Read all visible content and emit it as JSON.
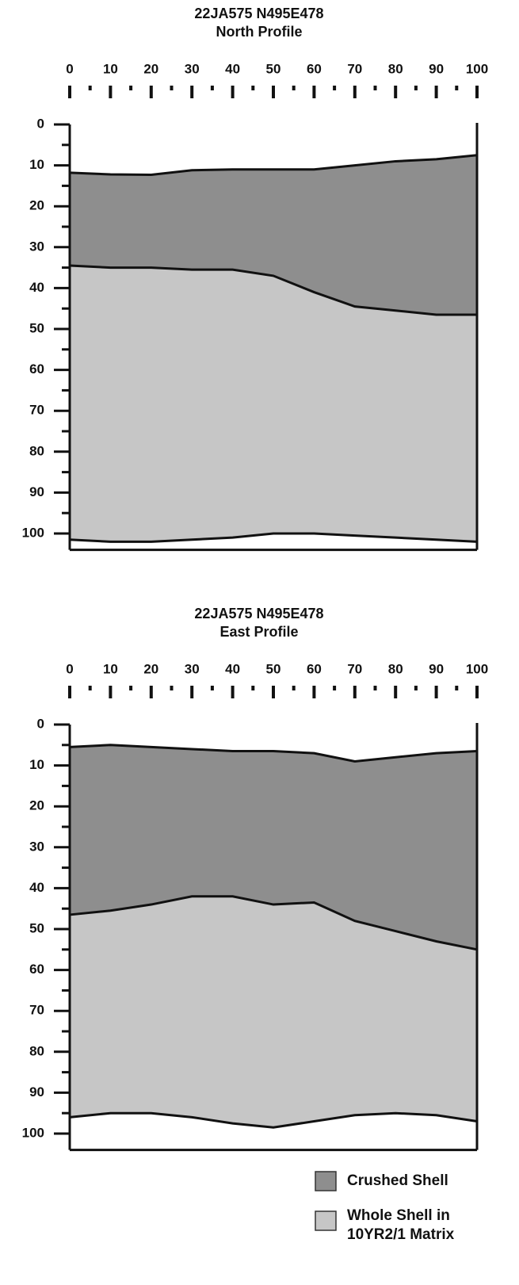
{
  "chart_data": [
    {
      "type": "profile",
      "title": "22JA575 N495E478",
      "subtitle": "North Profile",
      "x": [
        0,
        10,
        20,
        30,
        40,
        50,
        60,
        70,
        80,
        90,
        100
      ],
      "xlim": [
        0,
        100
      ],
      "xticks": [
        0,
        10,
        20,
        30,
        40,
        50,
        60,
        70,
        80,
        90,
        100
      ],
      "ylim": [
        0,
        104
      ],
      "yticks": [
        0,
        10,
        20,
        30,
        40,
        50,
        60,
        70,
        80,
        90,
        100
      ],
      "boundaries": [
        [
          11.8,
          12.2,
          12.3,
          11.2,
          11,
          11,
          11,
          10,
          9,
          8.5,
          7.5
        ],
        [
          34.5,
          35,
          35,
          35.5,
          35.5,
          37,
          41,
          44.5,
          45.5,
          46.5,
          46.5
        ],
        [
          101.5,
          102,
          102,
          101.5,
          101,
          100,
          100,
          100.5,
          101,
          101.5,
          102
        ]
      ]
    },
    {
      "type": "profile",
      "title": "22JA575 N495E478",
      "subtitle": "East Profile",
      "x": [
        0,
        10,
        20,
        30,
        40,
        50,
        60,
        70,
        80,
        90,
        100
      ],
      "xlim": [
        0,
        100
      ],
      "xticks": [
        0,
        10,
        20,
        30,
        40,
        50,
        60,
        70,
        80,
        90,
        100
      ],
      "ylim": [
        0,
        104
      ],
      "yticks": [
        0,
        10,
        20,
        30,
        40,
        50,
        60,
        70,
        80,
        90,
        100
      ],
      "boundaries": [
        [
          5.5,
          5,
          5.5,
          6,
          6.5,
          6.5,
          7,
          9,
          8,
          7,
          6.5
        ],
        [
          46.5,
          45.5,
          44,
          42,
          42,
          44,
          43.5,
          48,
          50.5,
          53,
          55
        ],
        [
          96,
          95,
          95,
          96,
          97.5,
          98.5,
          97,
          95.5,
          95,
          95.5,
          97
        ]
      ]
    }
  ],
  "legend": [
    {
      "lines": [
        "Crushed Shell"
      ],
      "color": "#8e8e8e"
    },
    {
      "lines": [
        "Whole Shell in",
        "10YR2/1 Matrix"
      ],
      "color": "#c6c6c6"
    }
  ]
}
